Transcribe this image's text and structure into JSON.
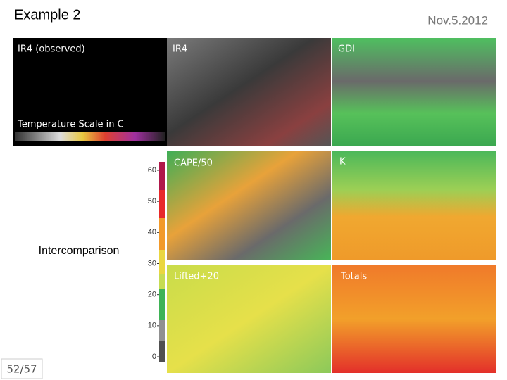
{
  "header": {
    "title": "Example 2",
    "date": "Nov.5.2012"
  },
  "panels": [
    {
      "label": "IR4 (observed)"
    },
    {
      "label": "IR4"
    },
    {
      "label": "GDI"
    },
    {
      "label": "CAPE/50"
    },
    {
      "label": "K"
    },
    {
      "label": "Lifted+20"
    },
    {
      "label": "Totals"
    }
  ],
  "scale_caption": "Temperature Scale in C",
  "colorbar": {
    "ticks": [
      60,
      50,
      40,
      30,
      20,
      10,
      0
    ]
  },
  "side_label": "Intercomparison",
  "page_number": "52/57"
}
